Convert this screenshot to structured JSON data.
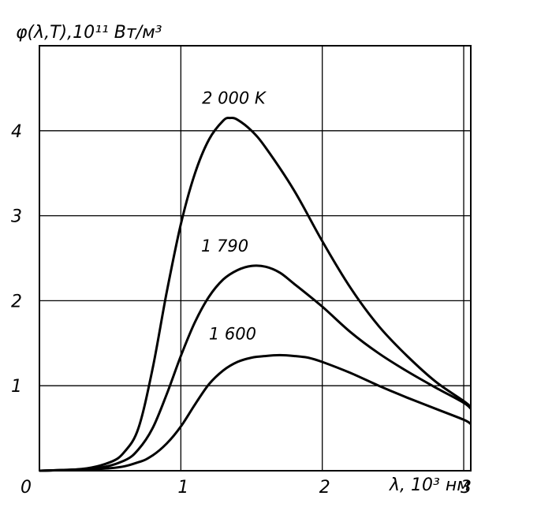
{
  "chart_data": {
    "type": "line",
    "title": "",
    "ylabel": "φ(λ,T),10¹¹ Вт/м³",
    "xlabel": "λ, 10³ нм",
    "origin_label": "0",
    "xlim": [
      0,
      3.05
    ],
    "ylim": [
      0,
      5
    ],
    "x_ticks": [
      1,
      2,
      3
    ],
    "y_ticks": [
      1,
      2,
      3,
      4
    ],
    "grid": true,
    "series": [
      {
        "name": "2 000 K",
        "x": [
          0,
          0.3,
          0.5,
          0.6,
          0.7,
          0.8,
          0.9,
          1.0,
          1.1,
          1.2,
          1.3,
          1.35,
          1.4,
          1.5,
          1.6,
          1.8,
          2.0,
          2.2,
          2.4,
          2.6,
          2.8,
          3.0,
          3.05
        ],
        "y": [
          0,
          0.02,
          0.1,
          0.22,
          0.5,
          1.2,
          2.1,
          2.9,
          3.5,
          3.9,
          4.12,
          4.15,
          4.13,
          4.0,
          3.8,
          3.3,
          2.7,
          2.15,
          1.7,
          1.35,
          1.05,
          0.82,
          0.75
        ]
      },
      {
        "name": "1 790",
        "x": [
          0,
          0.4,
          0.6,
          0.7,
          0.8,
          0.9,
          1.0,
          1.1,
          1.2,
          1.3,
          1.4,
          1.5,
          1.6,
          1.7,
          1.8,
          2.0,
          2.2,
          2.4,
          2.6,
          2.8,
          3.0,
          3.05
        ],
        "y": [
          0,
          0.03,
          0.12,
          0.25,
          0.5,
          0.9,
          1.35,
          1.75,
          2.05,
          2.25,
          2.36,
          2.41,
          2.4,
          2.33,
          2.2,
          1.93,
          1.63,
          1.38,
          1.17,
          0.98,
          0.8,
          0.73
        ]
      },
      {
        "name": "1 600",
        "x": [
          0,
          0.5,
          0.7,
          0.8,
          0.9,
          1.0,
          1.1,
          1.2,
          1.3,
          1.4,
          1.5,
          1.6,
          1.7,
          1.8,
          1.9,
          2.0,
          2.2,
          2.4,
          2.6,
          2.8,
          3.0,
          3.05
        ],
        "y": [
          0,
          0.03,
          0.1,
          0.18,
          0.32,
          0.52,
          0.78,
          1.02,
          1.18,
          1.28,
          1.33,
          1.35,
          1.36,
          1.35,
          1.33,
          1.28,
          1.15,
          1.0,
          0.86,
          0.73,
          0.6,
          0.55
        ]
      }
    ]
  }
}
